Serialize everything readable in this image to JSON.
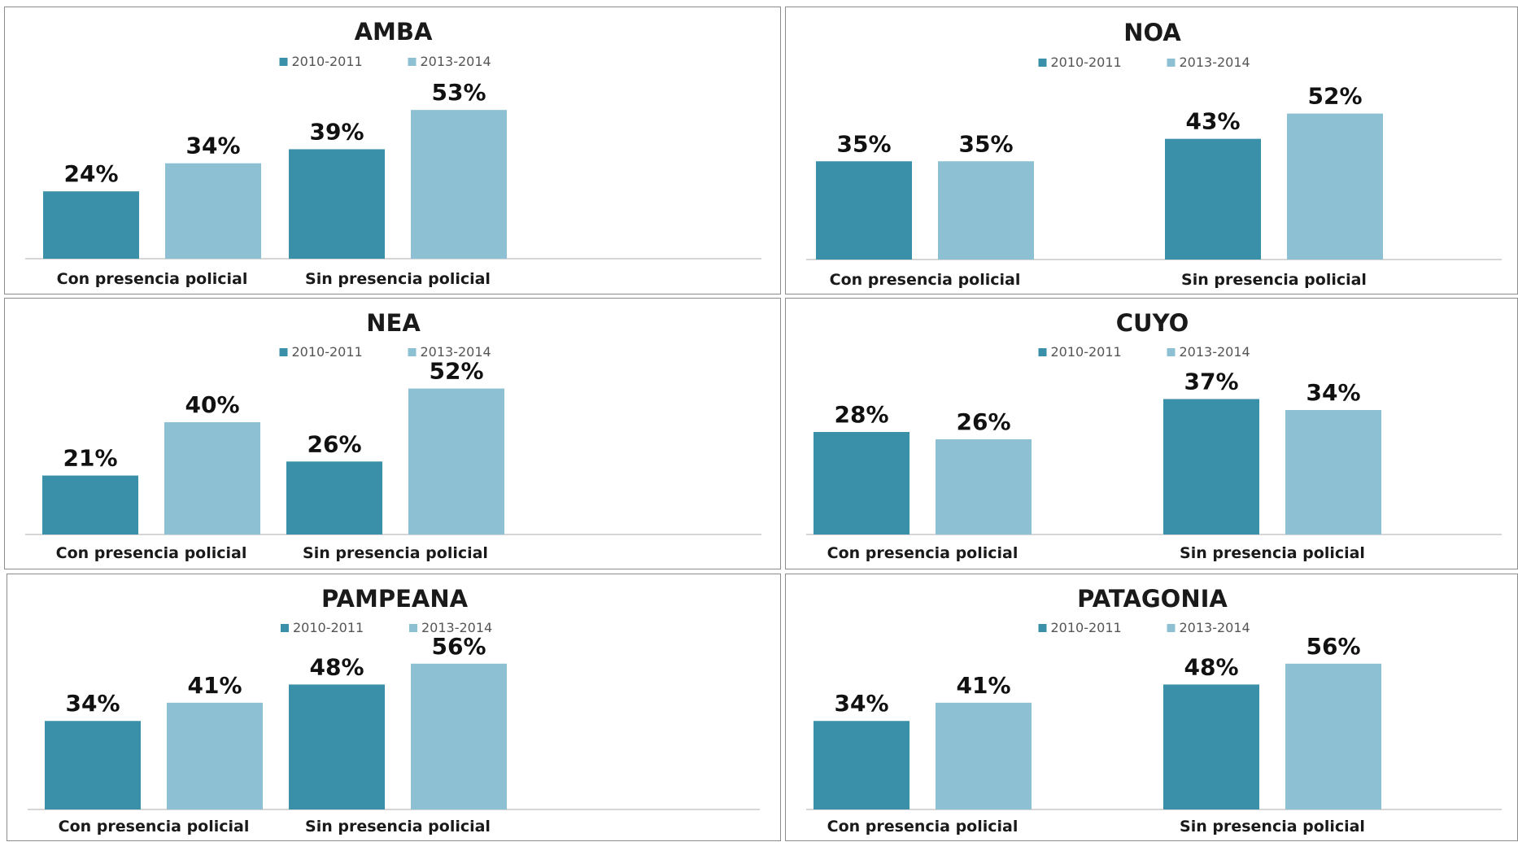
{
  "colors": {
    "series_2010": "#3a90a8",
    "series_2013": "#8cc0d2",
    "axis": "#c8c8c8"
  },
  "chart_data": [
    {
      "type": "bar",
      "title": "AMBA",
      "categories": [
        "Con presencia policial",
        "Sin presencia policial"
      ],
      "series": [
        {
          "name": "2010-2011",
          "values": [
            24,
            39
          ],
          "labels": [
            "24%",
            "39%"
          ]
        },
        {
          "name": "2013-2014",
          "values": [
            34,
            53
          ],
          "labels": [
            "34%",
            "53%"
          ]
        }
      ],
      "ylim": [
        0,
        60
      ],
      "grid": false,
      "legend": "top"
    },
    {
      "type": "bar",
      "title": "NOA",
      "categories": [
        "Con presencia policial",
        "Sin presencia policial"
      ],
      "series": [
        {
          "name": "2010-2011",
          "values": [
            35,
            43
          ],
          "labels": [
            "35%",
            "43%"
          ]
        },
        {
          "name": "2013-2014",
          "values": [
            35,
            52
          ],
          "labels": [
            "35%",
            "52%"
          ]
        }
      ],
      "ylim": [
        0,
        60
      ],
      "grid": false,
      "legend": "top"
    },
    {
      "type": "bar",
      "title": "NEA",
      "categories": [
        "Con presencia policial",
        "Sin presencia policial"
      ],
      "series": [
        {
          "name": "2010-2011",
          "values": [
            21,
            26
          ],
          "labels": [
            "21%",
            "26%"
          ]
        },
        {
          "name": "2013-2014",
          "values": [
            40,
            52
          ],
          "labels": [
            "40%",
            "52%"
          ]
        }
      ],
      "ylim": [
        0,
        60
      ],
      "grid": false,
      "legend": "top"
    },
    {
      "type": "bar",
      "title": "CUYO",
      "categories": [
        "Con presencia policial",
        "Sin presencia policial"
      ],
      "series": [
        {
          "name": "2010-2011",
          "values": [
            28,
            37
          ],
          "labels": [
            "28%",
            "37%"
          ]
        },
        {
          "name": "2013-2014",
          "values": [
            26,
            34
          ],
          "labels": [
            "26%",
            "34%"
          ]
        }
      ],
      "ylim": [
        0,
        45
      ],
      "grid": false,
      "legend": "top"
    },
    {
      "type": "bar",
      "title": "PAMPEANA",
      "categories": [
        "Con presencia policial",
        "Sin presencia policial"
      ],
      "series": [
        {
          "name": "2010-2011",
          "values": [
            34,
            48
          ],
          "labels": [
            "34%",
            "48%"
          ]
        },
        {
          "name": "2013-2014",
          "values": [
            41,
            56
          ],
          "labels": [
            "41%",
            "56%"
          ]
        }
      ],
      "ylim": [
        0,
        65
      ],
      "grid": false,
      "legend": "top"
    },
    {
      "type": "bar",
      "title": "PATAGONIA",
      "categories": [
        "Con presencia policial",
        "Sin presencia policial"
      ],
      "series": [
        {
          "name": "2010-2011",
          "values": [
            34,
            48
          ],
          "labels": [
            "34%",
            "48%"
          ]
        },
        {
          "name": "2013-2014",
          "values": [
            41,
            56
          ],
          "labels": [
            "41%",
            "56%"
          ]
        }
      ],
      "ylim": [
        0,
        65
      ],
      "grid": false,
      "legend": "top"
    }
  ]
}
